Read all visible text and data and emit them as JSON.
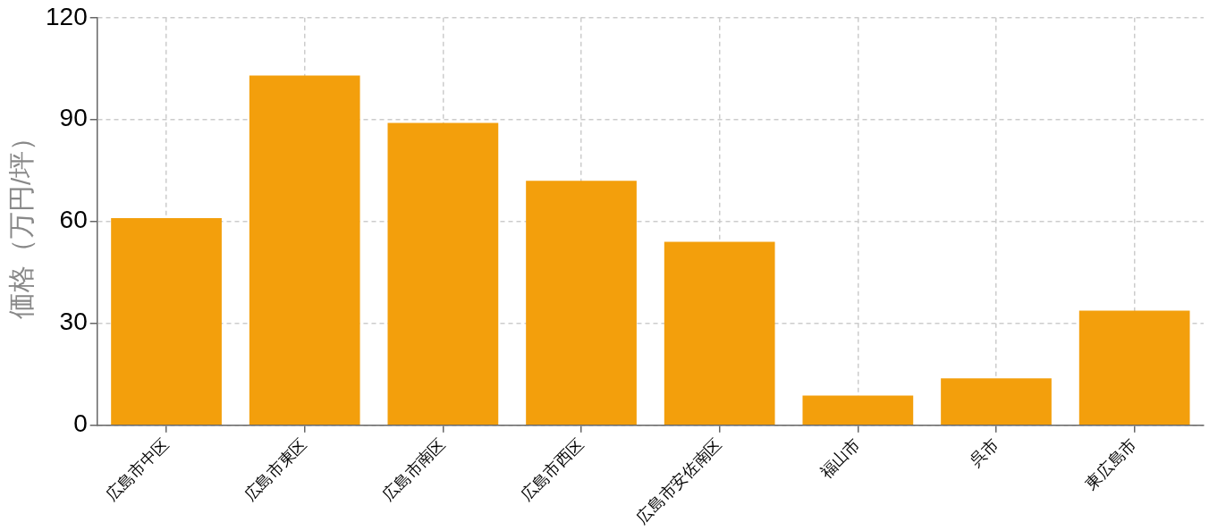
{
  "chart_data": {
    "type": "bar",
    "ylabel": "価格（万円/坪）",
    "categories": [
      "広島市中区",
      "広島市東区",
      "広島市南区",
      "広島市西区",
      "広島市安佐南区",
      "福山市",
      "呉市",
      "東広島市"
    ],
    "values": [
      61,
      103,
      89,
      72,
      54,
      8.7,
      13.8,
      33.7
    ],
    "color": "#f39f0c",
    "ylim": [
      0,
      120
    ],
    "yticks": [
      0,
      30,
      60,
      90,
      120
    ],
    "grid": true
  }
}
